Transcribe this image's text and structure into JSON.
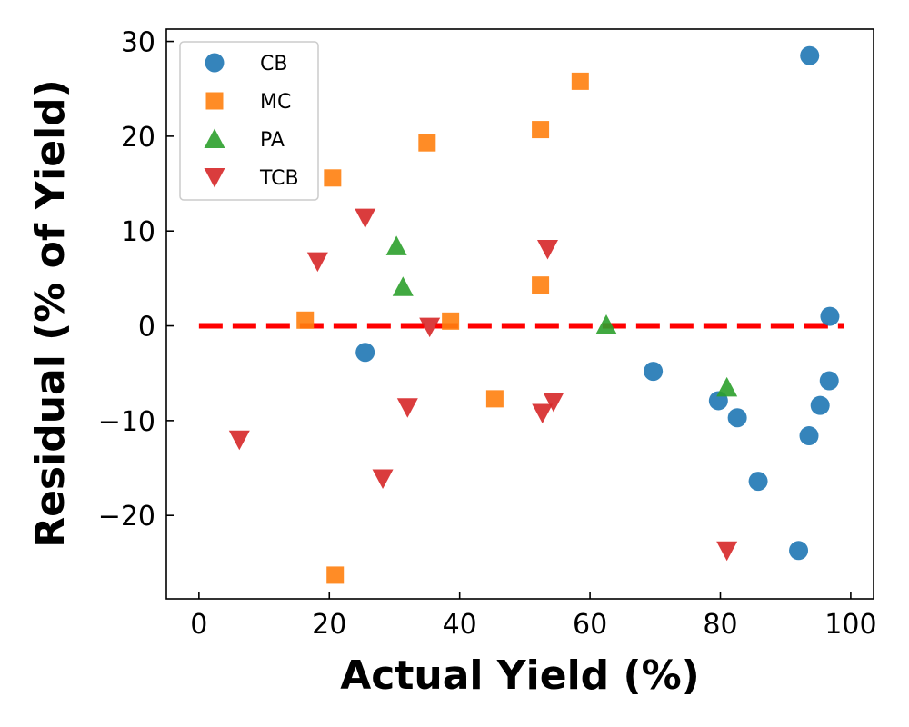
{
  "chart_data": {
    "type": "scatter",
    "title": "",
    "xlabel": "Actual Yield (%)",
    "ylabel": "Residual (% of Yield)",
    "xlim": [
      -5,
      103.5
    ],
    "ylim": [
      -28.8,
      31.3
    ],
    "xticks": [
      0,
      20,
      40,
      60,
      80,
      100
    ],
    "yticks": [
      -20,
      -10,
      0,
      10,
      20,
      30
    ],
    "grid": false,
    "legend_position": "top-left",
    "reference_line": {
      "y": 0,
      "x_range": [
        0,
        99
      ],
      "color": "#ff0000",
      "style": "dashed"
    },
    "series": [
      {
        "name": "CB",
        "marker": "circle",
        "color": "#1f77b4",
        "points": [
          {
            "x": 25.5,
            "y": -2.8
          },
          {
            "x": 69.7,
            "y": -4.8
          },
          {
            "x": 79.7,
            "y": -7.9
          },
          {
            "x": 82.6,
            "y": -9.7
          },
          {
            "x": 85.8,
            "y": -16.4
          },
          {
            "x": 92.0,
            "y": -23.7
          },
          {
            "x": 93.6,
            "y": -11.6
          },
          {
            "x": 93.7,
            "y": 28.5
          },
          {
            "x": 95.3,
            "y": -8.4
          },
          {
            "x": 96.7,
            "y": -5.8
          },
          {
            "x": 96.8,
            "y": 1.0
          }
        ]
      },
      {
        "name": "MC",
        "marker": "square",
        "color": "#ff7f0e",
        "points": [
          {
            "x": 16.3,
            "y": 0.6
          },
          {
            "x": 20.5,
            "y": 15.6
          },
          {
            "x": 20.9,
            "y": -26.3
          },
          {
            "x": 35.0,
            "y": 19.3
          },
          {
            "x": 38.6,
            "y": 0.5
          },
          {
            "x": 45.4,
            "y": -7.7
          },
          {
            "x": 52.4,
            "y": 20.7
          },
          {
            "x": 52.4,
            "y": 4.3
          },
          {
            "x": 58.5,
            "y": 25.8
          }
        ]
      },
      {
        "name": "PA",
        "marker": "triangle-up",
        "color": "#2ca02c",
        "points": [
          {
            "x": 30.3,
            "y": 8.4
          },
          {
            "x": 31.3,
            "y": 4.1
          },
          {
            "x": 62.5,
            "y": 0.1
          },
          {
            "x": 81.0,
            "y": -6.5
          }
        ]
      },
      {
        "name": "TCB",
        "marker": "triangle-down",
        "color": "#d62728",
        "points": [
          {
            "x": 6.2,
            "y": -12.0
          },
          {
            "x": 18.2,
            "y": 6.8
          },
          {
            "x": 25.5,
            "y": 11.4
          },
          {
            "x": 28.2,
            "y": -16.1
          },
          {
            "x": 32.0,
            "y": -8.6
          },
          {
            "x": 35.4,
            "y": -0.1
          },
          {
            "x": 52.7,
            "y": -9.2
          },
          {
            "x": 53.5,
            "y": 8.1
          },
          {
            "x": 54.4,
            "y": -8.0
          },
          {
            "x": 81.0,
            "y": -23.7
          }
        ]
      }
    ]
  }
}
